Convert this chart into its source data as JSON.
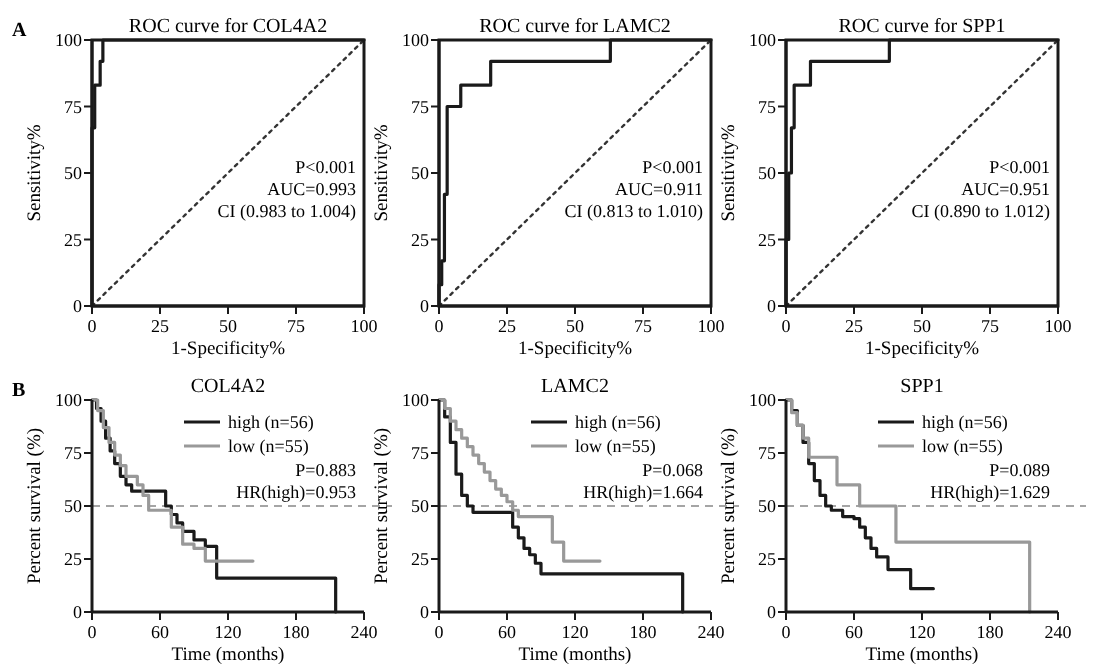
{
  "chart_data": [
    {
      "type": "line",
      "title": "ROC curve for COL4A2",
      "subtitle": "A",
      "xlabel": "1-Specificity%",
      "ylabel": "Sensitivity%",
      "xlim": [
        0,
        100
      ],
      "ylim": [
        0,
        100
      ],
      "xticks": [
        0,
        25,
        50,
        75,
        100
      ],
      "yticks": [
        0,
        25,
        50,
        75,
        100
      ],
      "annotations": [
        "P<0.001",
        "AUC=0.993",
        "CI (0.983 to 1.004)"
      ],
      "series": [
        {
          "color": "#1a1a1a",
          "x": [
            0,
            0,
            1,
            1,
            3,
            3,
            4,
            4,
            100
          ],
          "values": [
            0,
            67,
            67,
            83,
            83,
            92,
            92,
            100,
            100
          ]
        },
        {
          "color": "#333333",
          "line_style": "dotted",
          "x": [
            0,
            100
          ],
          "values": [
            0,
            100
          ]
        }
      ]
    },
    {
      "type": "line",
      "title": "ROC curve for LAMC2",
      "xlabel": "1-Specificity%",
      "ylabel": "Sensitivity%",
      "xlim": [
        0,
        100
      ],
      "ylim": [
        0,
        100
      ],
      "xticks": [
        0,
        25,
        50,
        75,
        100
      ],
      "yticks": [
        0,
        25,
        50,
        75,
        100
      ],
      "annotations": [
        "P<0.001",
        "AUC=0.911",
        "CI (0.813 to 1.010)"
      ],
      "series": [
        {
          "color": "#1a1a1a",
          "x": [
            0,
            0,
            1,
            1,
            2,
            2,
            3,
            3,
            8,
            8,
            19,
            19,
            63,
            63,
            100
          ],
          "values": [
            0,
            8,
            8,
            17,
            17,
            42,
            42,
            75,
            75,
            83,
            83,
            92,
            92,
            100,
            100
          ]
        },
        {
          "color": "#333333",
          "line_style": "dotted",
          "x": [
            0,
            100
          ],
          "values": [
            0,
            100
          ]
        }
      ]
    },
    {
      "type": "line",
      "title": "ROC curve for SPP1",
      "xlabel": "1-Specificity%",
      "ylabel": "Sensitivity%",
      "xlim": [
        0,
        100
      ],
      "ylim": [
        0,
        100
      ],
      "xticks": [
        0,
        25,
        50,
        75,
        100
      ],
      "yticks": [
        0,
        25,
        50,
        75,
        100
      ],
      "annotations": [
        "P<0.001",
        "AUC=0.951",
        "CI (0.890 to 1.012)"
      ],
      "series": [
        {
          "color": "#1a1a1a",
          "x": [
            0,
            0,
            1,
            1,
            2,
            2,
            3,
            3,
            9,
            9,
            38,
            38,
            100
          ],
          "values": [
            0,
            25,
            25,
            50,
            50,
            67,
            67,
            83,
            83,
            92,
            92,
            100,
            100
          ]
        },
        {
          "color": "#333333",
          "line_style": "dotted",
          "x": [
            0,
            100
          ],
          "values": [
            0,
            100
          ]
        }
      ]
    },
    {
      "type": "step",
      "title": "COL4A2",
      "subtitle": "B",
      "xlabel": "Time (months)",
      "ylabel": "Percent survival (%)",
      "xlim": [
        0,
        240
      ],
      "ylim": [
        0,
        100
      ],
      "xticks": [
        0,
        60,
        120,
        180,
        240
      ],
      "yticks": [
        0,
        25,
        50,
        75,
        100
      ],
      "legend": "top right",
      "annotations": [
        "P=0.883",
        "HR(high)=0.953"
      ],
      "ref_lines": [
        {
          "axis": "y",
          "value": 50,
          "line_style": "dashed",
          "color": "#888888"
        }
      ],
      "series": [
        {
          "name": "high (n=56)",
          "color": "#1a1a1a",
          "x": [
            0,
            4,
            8,
            12,
            16,
            20,
            25,
            30,
            35,
            60,
            65,
            70,
            75,
            80,
            90,
            100,
            110,
            215
          ],
          "values": [
            100,
            96,
            90,
            82,
            76,
            70,
            64,
            60,
            57,
            57,
            50,
            46,
            42,
            38,
            34,
            31,
            16,
            0
          ]
        },
        {
          "name": "low (n=55)",
          "color": "#999999",
          "x": [
            0,
            5,
            10,
            15,
            20,
            25,
            30,
            40,
            45,
            50,
            65,
            70,
            80,
            90,
            100,
            142
          ],
          "values": [
            100,
            95,
            87,
            80,
            74,
            69,
            64,
            60,
            55,
            48,
            48,
            40,
            32,
            30,
            24,
            24
          ]
        }
      ]
    },
    {
      "type": "step",
      "title": "LAMC2",
      "xlabel": "Time (months)",
      "ylabel": "Percent survival (%)",
      "xlim": [
        0,
        240
      ],
      "ylim": [
        0,
        100
      ],
      "xticks": [
        0,
        60,
        120,
        180,
        240
      ],
      "yticks": [
        0,
        25,
        50,
        75,
        100
      ],
      "legend": "top right",
      "annotations": [
        "P=0.068",
        "HR(high)=1.664"
      ],
      "ref_lines": [
        {
          "axis": "y",
          "value": 50,
          "line_style": "dashed",
          "color": "#888888"
        }
      ],
      "series": [
        {
          "name": "high (n=56)",
          "color": "#1a1a1a",
          "x": [
            0,
            5,
            10,
            15,
            20,
            25,
            30,
            60,
            65,
            70,
            75,
            80,
            85,
            90,
            215,
            215
          ],
          "values": [
            100,
            92,
            80,
            65,
            55,
            50,
            47,
            47,
            40,
            35,
            30,
            27,
            23,
            18,
            18,
            0
          ]
        },
        {
          "name": "low (n=55)",
          "color": "#999999",
          "x": [
            0,
            5,
            10,
            15,
            20,
            25,
            30,
            35,
            40,
            45,
            50,
            55,
            60,
            65,
            70,
            95,
            100,
            110,
            142
          ],
          "values": [
            100,
            96,
            90,
            86,
            82,
            78,
            74,
            70,
            66,
            62,
            58,
            55,
            52,
            48,
            45,
            45,
            33,
            24,
            24
          ]
        }
      ]
    },
    {
      "type": "step",
      "title": "SPP1",
      "xlabel": "Time (months)",
      "ylabel": "Percent survival (%)",
      "xlim": [
        0,
        240
      ],
      "ylim": [
        0,
        100
      ],
      "xticks": [
        0,
        60,
        120,
        180,
        240
      ],
      "yticks": [
        0,
        25,
        50,
        75,
        100
      ],
      "legend": "top right",
      "annotations": [
        "P=0.089",
        "HR(high)=1.629"
      ],
      "ref_lines": [
        {
          "axis": "y",
          "value": 50,
          "line_style": "dashed",
          "color": "#888888"
        }
      ],
      "series": [
        {
          "name": "high (n=56)",
          "color": "#1a1a1a",
          "x": [
            0,
            5,
            10,
            15,
            20,
            25,
            30,
            35,
            40,
            50,
            60,
            65,
            70,
            75,
            80,
            90,
            105,
            110,
            130
          ],
          "values": [
            100,
            95,
            88,
            80,
            70,
            62,
            55,
            50,
            48,
            45,
            44,
            40,
            35,
            30,
            26,
            20,
            20,
            11,
            11
          ]
        },
        {
          "name": "low (n=55)",
          "color": "#999999",
          "x": [
            0,
            5,
            10,
            15,
            20,
            40,
            45,
            60,
            65,
            97,
            215,
            215
          ],
          "values": [
            100,
            94,
            88,
            82,
            73,
            73,
            60,
            60,
            50,
            33,
            33,
            0
          ]
        }
      ]
    }
  ]
}
